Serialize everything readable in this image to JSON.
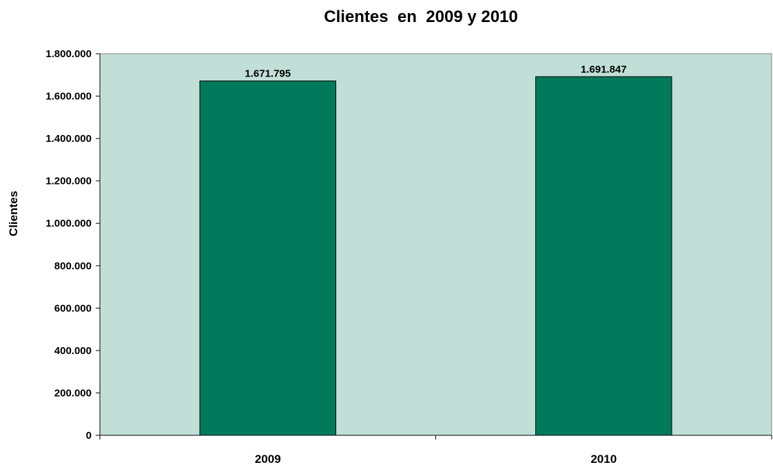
{
  "chart_data": {
    "type": "bar",
    "title": "Clientes  en  2009 y 2010",
    "xlabel": "",
    "ylabel": "Clientes",
    "categories": [
      "2009",
      "2010"
    ],
    "values": [
      1671795,
      1691847
    ],
    "data_labels": [
      "1.671.795",
      "1.691.847"
    ],
    "ylim": [
      0,
      1800000
    ],
    "yticks": [
      0,
      200000,
      400000,
      600000,
      800000,
      1000000,
      1200000,
      1400000,
      1600000,
      1800000
    ],
    "ytick_labels": [
      "0",
      "200.000",
      "400.000",
      "600.000",
      "800.000",
      "1.000.000",
      "1.200.000",
      "1.400.000",
      "1.600.000",
      "1.800.000"
    ],
    "grid": false,
    "legend": "none",
    "colors": {
      "bar": "#007A5A",
      "bar_edge": "#000000",
      "plot_background": "#C2DFD7",
      "plot_border": "#808080"
    }
  }
}
